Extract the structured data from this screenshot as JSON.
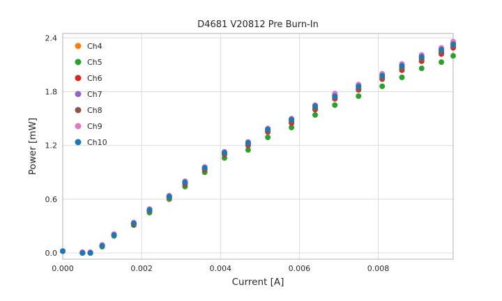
{
  "chart_data": {
    "type": "scatter",
    "title": "D4681 V20812 Pre Burn-In",
    "xlabel": "Current [A]",
    "ylabel": "Power [mW]",
    "xlim": [
      0.0,
      0.0099
    ],
    "ylim": [
      -0.07,
      2.45
    ],
    "x_ticks": [
      0.0,
      0.002,
      0.004,
      0.006,
      0.008
    ],
    "x_tick_labels": [
      "0.000",
      "0.002",
      "0.004",
      "0.006",
      "0.008"
    ],
    "y_ticks": [
      0.0,
      0.6,
      1.2,
      1.8,
      2.4
    ],
    "y_tick_labels": [
      "0.0",
      "0.6",
      "1.2",
      "1.8",
      "2.4"
    ],
    "grid": true,
    "grid_color": "#dcdcdc",
    "spine_color": "#b0b0b0",
    "legend_position": "upper left",
    "marker": "circle",
    "marker_radius": 4,
    "x": [
      0.0,
      0.0005,
      0.0007,
      0.001,
      0.0013,
      0.0018,
      0.0022,
      0.0027,
      0.0031,
      0.0036,
      0.0041,
      0.0047,
      0.0052,
      0.0058,
      0.0064,
      0.0069,
      0.0075,
      0.0081,
      0.0086,
      0.0091,
      0.0096,
      0.0099
    ],
    "series": [
      {
        "name": "Ch4",
        "color": "#ff7f0e",
        "values": [
          0.02,
          0.0,
          0.0,
          0.08,
          0.2,
          0.33,
          0.48,
          0.63,
          0.78,
          0.94,
          1.11,
          1.22,
          1.36,
          1.47,
          1.62,
          1.74,
          1.84,
          1.96,
          2.07,
          2.17,
          2.25,
          2.32
        ]
      },
      {
        "name": "Ch5",
        "color": "#2ca02c",
        "values": [
          0.02,
          0.0,
          0.0,
          0.07,
          0.19,
          0.31,
          0.45,
          0.6,
          0.74,
          0.9,
          1.06,
          1.15,
          1.29,
          1.4,
          1.54,
          1.65,
          1.75,
          1.86,
          1.96,
          2.06,
          2.13,
          2.2
        ]
      },
      {
        "name": "Ch6",
        "color": "#d62728",
        "values": [
          0.02,
          0.0,
          0.0,
          0.08,
          0.2,
          0.32,
          0.47,
          0.62,
          0.77,
          0.93,
          1.1,
          1.2,
          1.35,
          1.45,
          1.6,
          1.72,
          1.82,
          1.94,
          2.04,
          2.14,
          2.22,
          2.29
        ]
      },
      {
        "name": "Ch7",
        "color": "#9467bd",
        "values": [
          0.02,
          0.0,
          0.0,
          0.08,
          0.2,
          0.33,
          0.48,
          0.63,
          0.79,
          0.95,
          1.12,
          1.23,
          1.38,
          1.49,
          1.64,
          1.76,
          1.86,
          1.98,
          2.09,
          2.19,
          2.27,
          2.34
        ]
      },
      {
        "name": "Ch8",
        "color": "#8c564b",
        "values": [
          0.02,
          0.0,
          0.0,
          0.08,
          0.2,
          0.33,
          0.47,
          0.62,
          0.78,
          0.94,
          1.11,
          1.21,
          1.36,
          1.47,
          1.61,
          1.73,
          1.83,
          1.95,
          2.06,
          2.16,
          2.24,
          2.31
        ]
      },
      {
        "name": "Ch9",
        "color": "#e377c2",
        "values": [
          0.02,
          0.01,
          0.01,
          0.09,
          0.21,
          0.34,
          0.49,
          0.64,
          0.8,
          0.96,
          1.13,
          1.24,
          1.39,
          1.5,
          1.65,
          1.78,
          1.88,
          2.0,
          2.11,
          2.21,
          2.29,
          2.36
        ]
      },
      {
        "name": "Ch10",
        "color": "#1f77b4",
        "values": [
          0.02,
          0.0,
          0.0,
          0.08,
          0.2,
          0.33,
          0.48,
          0.63,
          0.79,
          0.95,
          1.12,
          1.23,
          1.38,
          1.49,
          1.64,
          1.75,
          1.86,
          1.98,
          2.09,
          2.19,
          2.27,
          2.33
        ]
      }
    ]
  }
}
